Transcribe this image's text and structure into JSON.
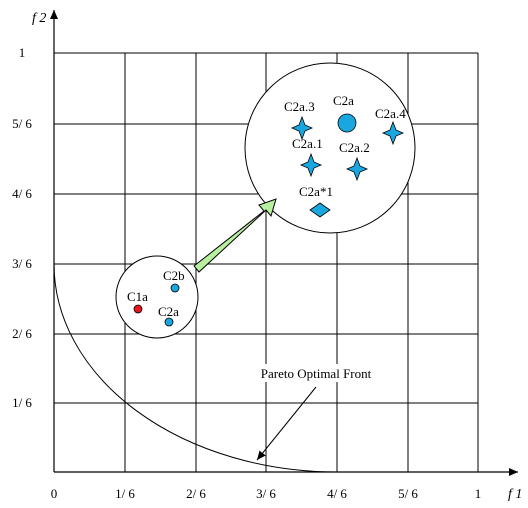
{
  "axes": {
    "x_name": "f 1",
    "y_name": "f 2",
    "x_ticks": [
      "0",
      "1/ 6",
      "2/ 6",
      "3/ 6",
      "4/ 6",
      "5/ 6",
      "1"
    ],
    "y_ticks": [
      "1/ 6",
      "2/ 6",
      "3/ 6",
      "4/ 6",
      "5/ 6",
      "1"
    ]
  },
  "labels": {
    "c1a": "C1a",
    "c2b": "C2b",
    "c2a_small": "C2a",
    "c2a_big": "C2a",
    "c2a3": "C2a.3",
    "c2a4": "C2a.4",
    "c2a1": "C2a.1",
    "c2a2": "C2a.2",
    "c2a_star1": "C2a*1",
    "pareto": "Pareto Optimal Front"
  },
  "colors": {
    "red_point": "#e8141c",
    "blue_point": "#1aa7e0",
    "star_fill": "#1aa7e0",
    "arrow_fill": "#b8f0a0"
  }
}
